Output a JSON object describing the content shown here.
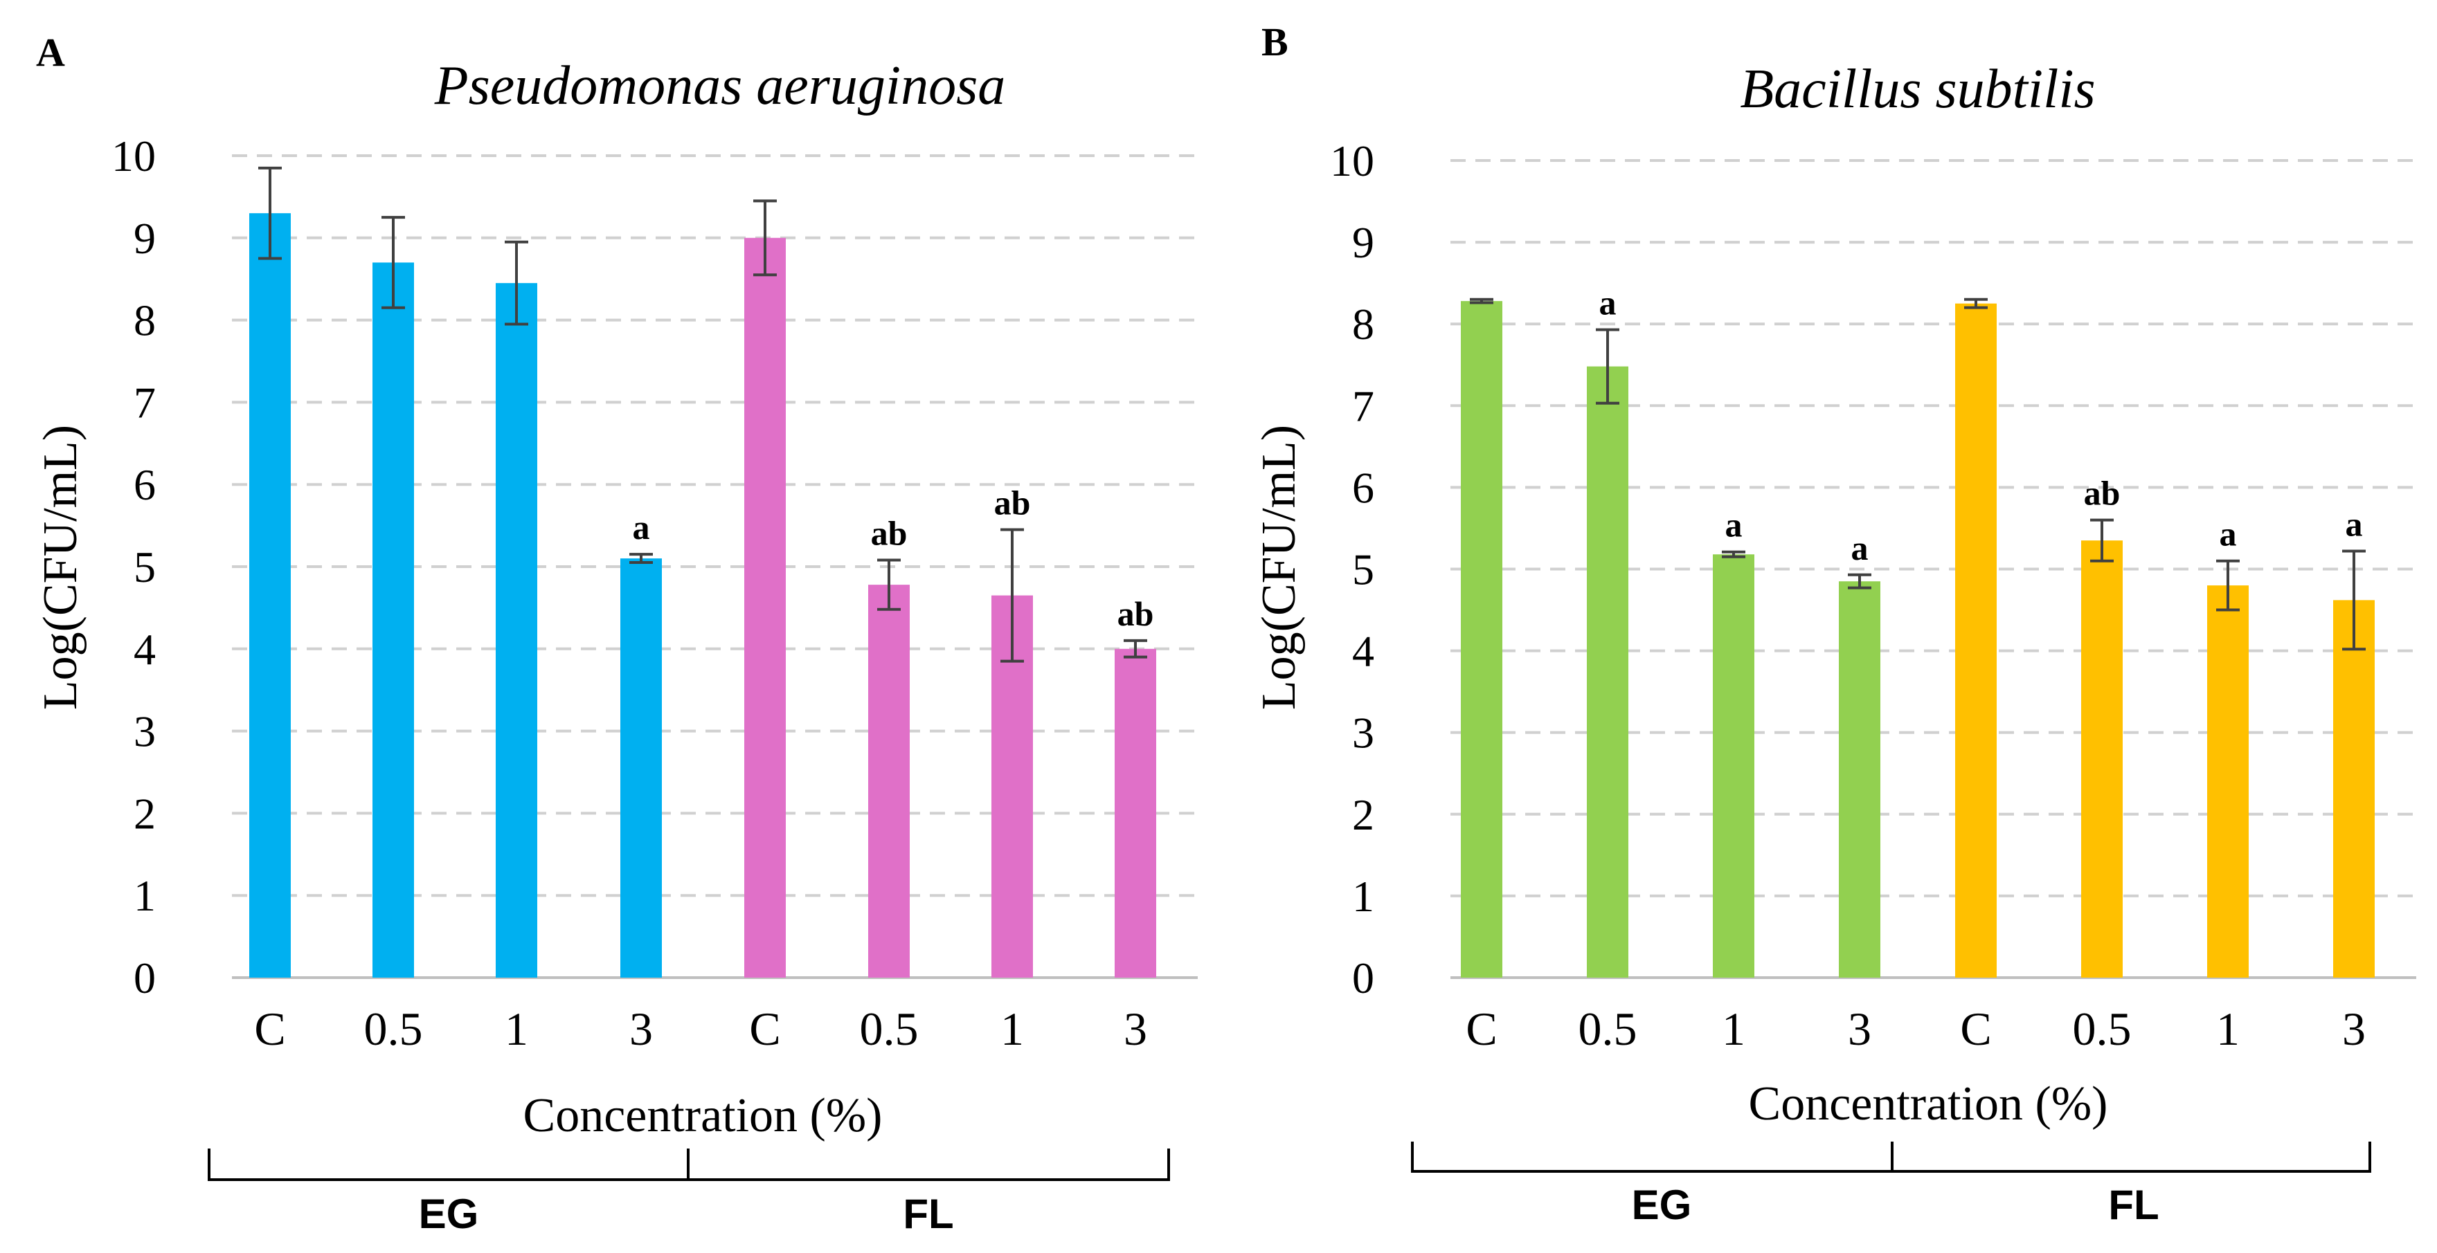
{
  "chart_data": [
    {
      "type": "bar",
      "panel_label": "A",
      "title": "Pseudomonas aeruginosa",
      "xlabel": "Concentration (%)",
      "ylabel": "Log(CFU/mL)",
      "ylim": [
        0,
        10
      ],
      "yticks": [
        "0",
        "1",
        "2",
        "3",
        "4",
        "5",
        "6",
        "7",
        "8",
        "9",
        "10"
      ],
      "grid": true,
      "categories": [
        "C",
        "0.5",
        "1",
        "3",
        "C",
        "0.5",
        "1",
        "3"
      ],
      "groups": [
        {
          "name": "EG",
          "color": "#00b0f0",
          "categories": [
            "C",
            "0.5",
            "1",
            "3"
          ],
          "values": [
            9.3,
            8.7,
            8.45,
            5.1
          ],
          "errors": [
            0.55,
            0.55,
            0.5,
            0.05
          ],
          "labels": [
            "",
            "",
            "",
            "a"
          ]
        },
        {
          "name": "FL",
          "color": "#e070c8",
          "categories": [
            "C",
            "0.5",
            "1",
            "3"
          ],
          "values": [
            9.0,
            4.78,
            4.65,
            4.0
          ],
          "errors": [
            0.45,
            0.3,
            0.8,
            0.1
          ],
          "labels": [
            "",
            "ab",
            "ab",
            "ab"
          ]
        }
      ]
    },
    {
      "type": "bar",
      "panel_label": "B",
      "title": "Bacillus subtilis",
      "xlabel": "Concentration (%)",
      "ylabel": "Log(CFU/mL)",
      "ylim": [
        0,
        10
      ],
      "yticks": [
        "0",
        "1",
        "2",
        "3",
        "4",
        "5",
        "6",
        "7",
        "8",
        "9",
        "10"
      ],
      "grid": true,
      "categories": [
        "C",
        "0.5",
        "1",
        "3",
        "C",
        "0.5",
        "1",
        "3"
      ],
      "groups": [
        {
          "name": "EG",
          "color": "#92d050",
          "categories": [
            "C",
            "0.5",
            "1",
            "3"
          ],
          "values": [
            8.28,
            7.48,
            5.18,
            4.85
          ],
          "errors": [
            0.02,
            0.45,
            0.03,
            0.08
          ],
          "labels": [
            "",
            "a",
            "a",
            "a"
          ]
        },
        {
          "name": "FL",
          "color": "#ffc000",
          "categories": [
            "C",
            "0.5",
            "1",
            "3"
          ],
          "values": [
            8.25,
            5.35,
            4.8,
            4.62
          ],
          "errors": [
            0.05,
            0.25,
            0.3,
            0.6
          ],
          "labels": [
            "",
            "ab",
            "a",
            "a"
          ]
        }
      ]
    }
  ]
}
